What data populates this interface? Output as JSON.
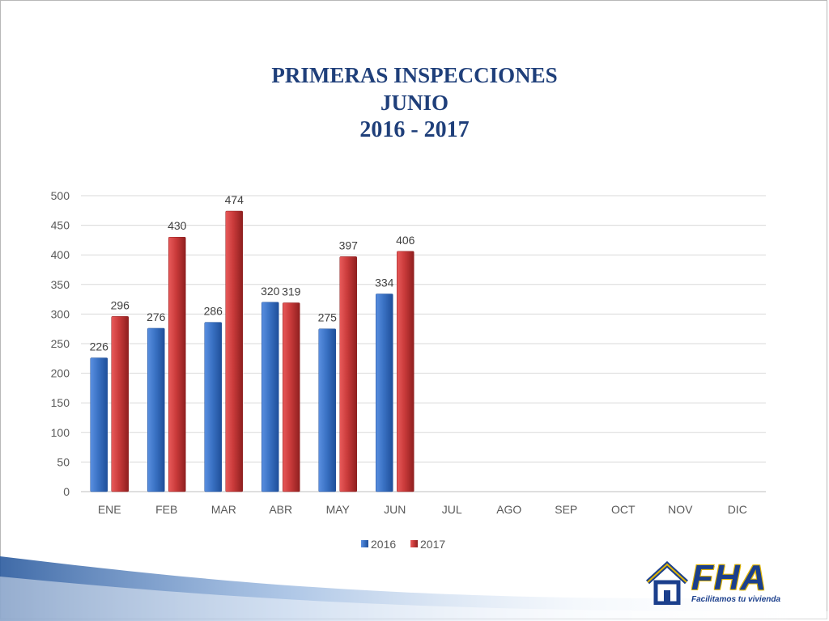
{
  "title": {
    "line1": "PRIMERAS INSPECCIONES",
    "line2": "JUNIO",
    "line3": "2016 -  2017"
  },
  "colors": {
    "series_2016": "#3a72c4",
    "series_2017": "#c93a3a",
    "title": "#1f3f7a",
    "brand": "#1b3f8c",
    "brand_accent": "#e0b400"
  },
  "logo": {
    "name": "FHA",
    "tagline": "Facilitamos tu vivienda"
  },
  "chart_data": {
    "type": "bar",
    "categories": [
      "ENE",
      "FEB",
      "MAR",
      "ABR",
      "MAY",
      "JUN",
      "JUL",
      "AGO",
      "SEP",
      "OCT",
      "NOV",
      "DIC"
    ],
    "series": [
      {
        "name": "2016",
        "values": [
          226,
          276,
          286,
          320,
          275,
          334,
          null,
          null,
          null,
          null,
          null,
          null
        ]
      },
      {
        "name": "2017",
        "values": [
          296,
          430,
          474,
          319,
          397,
          406,
          null,
          null,
          null,
          null,
          null,
          null
        ]
      }
    ],
    "ylim": [
      0,
      500
    ],
    "yticks": [
      0,
      50,
      100,
      150,
      200,
      250,
      300,
      350,
      400,
      450,
      500
    ],
    "grid": true,
    "legend_position": "bottom",
    "data_labels": true
  }
}
